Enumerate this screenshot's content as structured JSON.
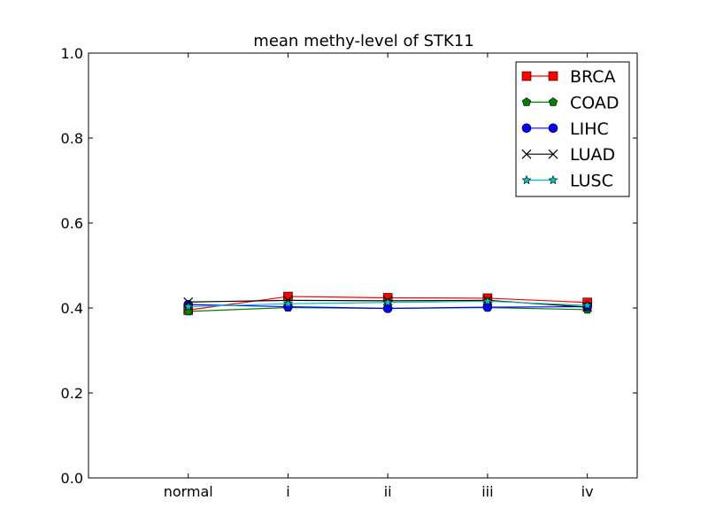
{
  "chart_data": {
    "type": "line",
    "title": "mean methy-level of STK11",
    "xlabel": "",
    "ylabel": "",
    "categories": [
      "normal",
      "i",
      "ii",
      "iii",
      "iv"
    ],
    "xlim": [
      -1,
      4.5
    ],
    "ylim": [
      0.0,
      1.0
    ],
    "yticks": [
      0.0,
      0.2,
      0.4,
      0.6,
      0.8,
      1.0
    ],
    "ytick_labels": [
      "0.0",
      "0.2",
      "0.4",
      "0.6",
      "0.8",
      "1.0"
    ],
    "grid": false,
    "legend_position": "top-right",
    "series": [
      {
        "name": "BRCA",
        "color": "#ff0000",
        "marker": "square",
        "values": [
          0.395,
          0.427,
          0.424,
          0.423,
          0.413
        ]
      },
      {
        "name": "COAD",
        "color": "#008000",
        "marker": "pentagon",
        "values": [
          0.392,
          0.401,
          0.399,
          0.401,
          0.396
        ]
      },
      {
        "name": "LIHC",
        "color": "#0000ff",
        "marker": "circle",
        "values": [
          0.408,
          0.403,
          0.399,
          0.402,
          0.403
        ]
      },
      {
        "name": "LUAD",
        "color": "#000000",
        "marker": "x",
        "values": [
          0.414,
          0.418,
          0.417,
          0.418,
          0.402
        ]
      },
      {
        "name": "LUSC",
        "color": "#00bfbf",
        "marker": "star",
        "values": [
          0.403,
          0.41,
          0.413,
          0.416,
          0.406
        ]
      }
    ]
  }
}
